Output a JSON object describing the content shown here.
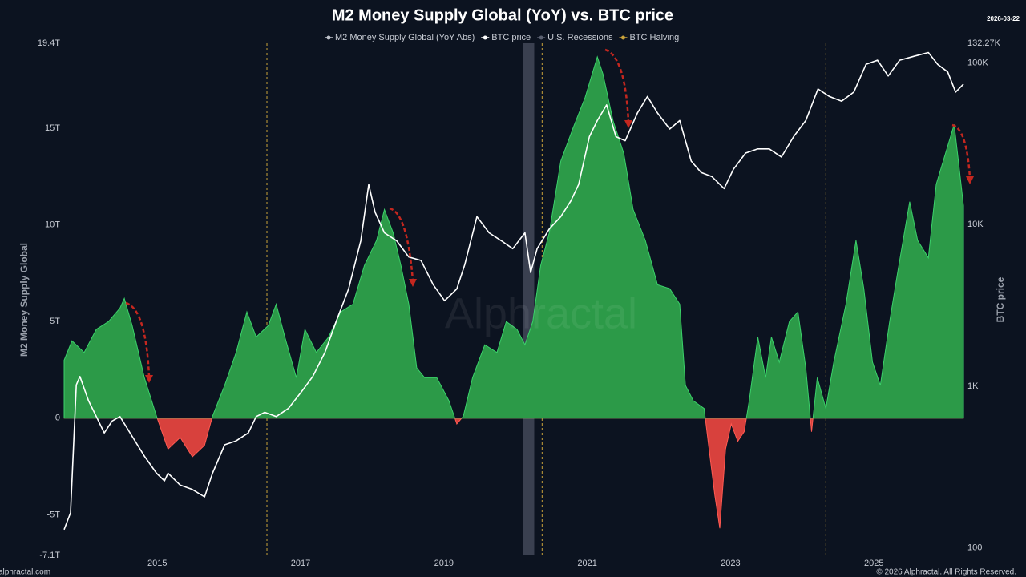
{
  "chart_data": {
    "type": "area-line",
    "title": "M2 Money Supply Global (YoY) vs. BTC price",
    "date": "2026-03-22",
    "watermark": "Alphractal",
    "footer": "© 2026 Alphractal. All Rights Reserved.",
    "source": "alphractal.com",
    "y_label": "M2 Money Supply Global",
    "y2_label": "BTC price",
    "y2_log": true,
    "xlim": [
      2013.7,
      2026.25
    ],
    "xticks": [
      2015,
      2017,
      2019,
      2021,
      2023,
      2025
    ],
    "ylim": [
      -7.1,
      19.4
    ],
    "yticks": [
      {
        "value": -7.1,
        "label": "-7.1T"
      },
      {
        "value": -5,
        "label": "-5T"
      },
      0,
      {
        "value": 5,
        "label": "5T"
      },
      {
        "value": 10,
        "label": "10T"
      },
      {
        "value": 15,
        "label": "15T"
      },
      {
        "value": 19.4,
        "label": "19.4T"
      }
    ],
    "y2lim": [
      90,
      132270
    ],
    "y2ticks": [
      100,
      {
        "value": 1000,
        "label": "1K"
      },
      {
        "value": 10000,
        "label": "10K"
      },
      {
        "value": 100000,
        "label": "100K"
      },
      {
        "value": 132270,
        "label": "132.27K"
      }
    ],
    "series": [
      {
        "name": "M2 Money Supply Global (YoY Abs)",
        "color": "#2c9a48",
        "negative_color": "#d8413d",
        "x": [
          2013.7,
          2013.81,
          2013.98,
          2014.15,
          2014.32,
          2014.48,
          2014.54,
          2014.65,
          2014.82,
          2014.99,
          2015.15,
          2015.32,
          2015.49,
          2015.66,
          2015.77,
          2015.94,
          2016.1,
          2016.25,
          2016.38,
          2016.55,
          2016.66,
          2016.78,
          2016.94,
          2017.06,
          2017.22,
          2017.39,
          2017.56,
          2017.73,
          2017.89,
          2018.06,
          2018.17,
          2018.29,
          2018.4,
          2018.51,
          2018.62,
          2018.73,
          2018.9,
          2019.07,
          2019.18,
          2019.27,
          2019.4,
          2019.57,
          2019.74,
          2019.87,
          2020.02,
          2020.13,
          2020.24,
          2020.35,
          2020.47,
          2020.63,
          2020.8,
          2020.97,
          2021.14,
          2021.22,
          2021.36,
          2021.51,
          2021.64,
          2021.81,
          2021.98,
          2022.15,
          2022.29,
          2022.37,
          2022.48,
          2022.63,
          2022.7,
          2022.78,
          2022.85,
          2022.93,
          2023.01,
          2023.1,
          2023.19,
          2023.26,
          2023.38,
          2023.49,
          2023.57,
          2023.68,
          2023.82,
          2023.94,
          2024.05,
          2024.13,
          2024.21,
          2024.33,
          2024.44,
          2024.61,
          2024.75,
          2024.86,
          2024.98,
          2025.09,
          2025.22,
          2025.33,
          2025.5,
          2025.61,
          2025.76,
          2025.87,
          2026.0,
          2026.12,
          2026.18,
          2026.25
        ],
        "values": [
          3.0,
          4.0,
          3.4,
          4.6,
          5.0,
          5.7,
          6.2,
          4.8,
          2.1,
          0.1,
          -1.6,
          -1.0,
          -2.0,
          -1.4,
          0.1,
          1.7,
          3.4,
          5.5,
          4.2,
          4.8,
          5.9,
          4.2,
          2.1,
          4.6,
          3.4,
          4.2,
          5.5,
          5.9,
          7.9,
          9.2,
          10.8,
          9.6,
          7.9,
          5.9,
          2.6,
          2.1,
          2.1,
          0.9,
          -0.3,
          0.1,
          2.1,
          3.8,
          3.4,
          5.0,
          4.6,
          3.8,
          5.0,
          7.9,
          9.6,
          13.3,
          15.0,
          16.6,
          18.7,
          17.8,
          15.4,
          13.7,
          10.8,
          9.2,
          6.9,
          6.7,
          5.9,
          1.7,
          0.9,
          0.5,
          -1.6,
          -4.0,
          -5.7,
          -1.6,
          -0.3,
          -1.2,
          -0.7,
          0.9,
          4.2,
          2.1,
          4.2,
          2.9,
          5.0,
          5.5,
          2.6,
          -0.7,
          2.1,
          0.5,
          2.9,
          5.9,
          9.2,
          6.7,
          2.9,
          1.7,
          5.0,
          7.5,
          11.2,
          9.2,
          8.3,
          12.1,
          13.7,
          15.2,
          13.3,
          11.0
        ]
      },
      {
        "name": "BTC price",
        "color": "#ffffff",
        "axis": "y2",
        "x": [
          2013.7,
          2013.79,
          2013.87,
          2013.92,
          2014.04,
          2014.15,
          2014.26,
          2014.37,
          2014.48,
          2014.65,
          2014.82,
          2014.99,
          2015.1,
          2015.15,
          2015.32,
          2015.49,
          2015.66,
          2015.77,
          2015.94,
          2016.1,
          2016.27,
          2016.38,
          2016.5,
          2016.66,
          2016.83,
          2017.0,
          2017.17,
          2017.34,
          2017.5,
          2017.67,
          2017.84,
          2017.95,
          2018.04,
          2018.17,
          2018.34,
          2018.51,
          2018.68,
          2018.85,
          2019.01,
          2019.18,
          2019.29,
          2019.46,
          2019.63,
          2019.8,
          2019.96,
          2020.13,
          2020.21,
          2020.3,
          2020.47,
          2020.63,
          2020.77,
          2020.88,
          2021.03,
          2021.14,
          2021.27,
          2021.4,
          2021.53,
          2021.7,
          2021.84,
          2021.98,
          2022.15,
          2022.29,
          2022.45,
          2022.59,
          2022.74,
          2022.91,
          2023.04,
          2023.21,
          2023.38,
          2023.54,
          2023.71,
          2023.88,
          2024.05,
          2024.22,
          2024.38,
          2024.55,
          2024.72,
          2024.89,
          2025.05,
          2025.2,
          2025.36,
          2025.56,
          2025.76,
          2025.89,
          2026.03,
          2026.14,
          2026.25
        ],
        "values": [
          130,
          165,
          1020,
          1150,
          815,
          650,
          515,
          610,
          650,
          490,
          370,
          290,
          260,
          290,
          245,
          230,
          207,
          290,
          435,
          460,
          515,
          650,
          690,
          650,
          730,
          910,
          1150,
          1620,
          2540,
          4000,
          7950,
          17700,
          11900,
          8900,
          7950,
          6300,
          6000,
          4250,
          3380,
          4000,
          5650,
          11200,
          8900,
          7950,
          7100,
          8900,
          5050,
          7100,
          9400,
          11200,
          14000,
          17700,
          35000,
          44000,
          55000,
          35000,
          33000,
          49000,
          62000,
          49000,
          39000,
          44000,
          24700,
          21000,
          19800,
          16700,
          22000,
          27700,
          29400,
          29400,
          26200,
          35000,
          44000,
          69000,
          62000,
          58000,
          66000,
          98000,
          104000,
          83000,
          104000,
          110000,
          116000,
          98000,
          88000,
          66000,
          74000
        ]
      }
    ],
    "recessions": {
      "name": "U.S. Recessions",
      "color": "#3a4050",
      "ranges": [
        [
          2020.1,
          2020.26
        ]
      ]
    },
    "halvings": {
      "name": "BTC Halving",
      "color": "#c9a23a",
      "x": [
        2016.53,
        2020.37,
        2024.33
      ]
    }
  }
}
